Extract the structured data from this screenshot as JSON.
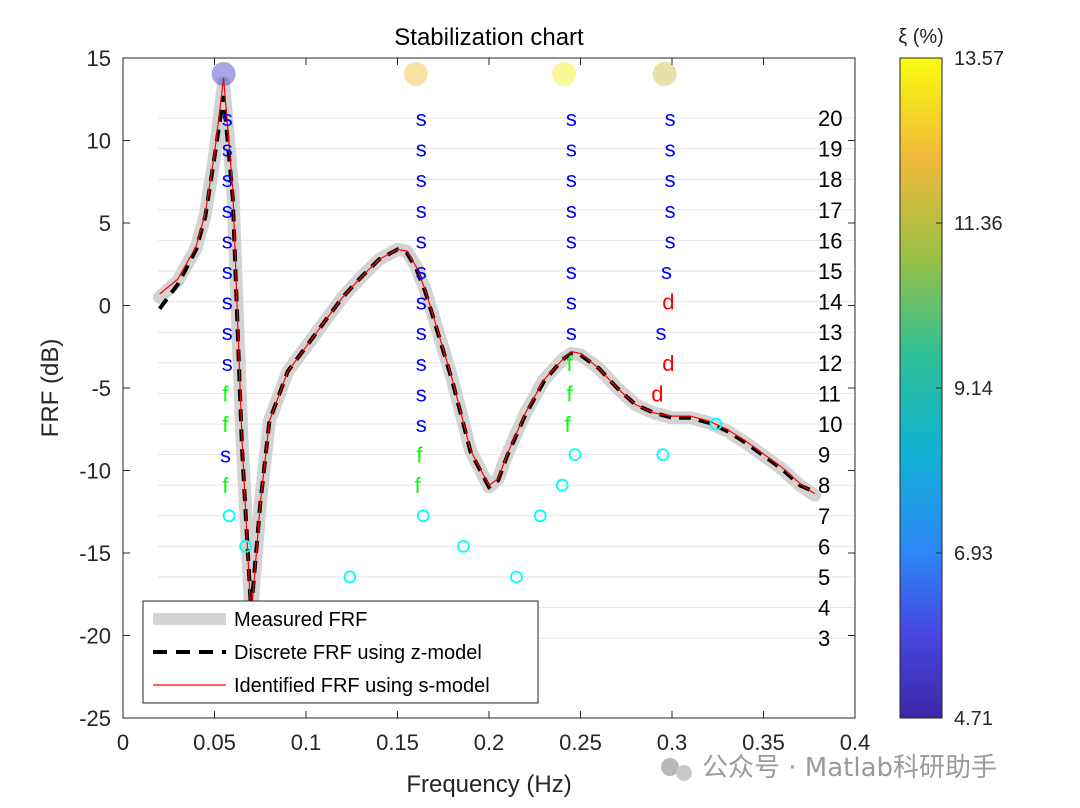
{
  "chart_data": {
    "type": "line",
    "title": "Stabilization chart",
    "xlabel": "Frequency (Hz)",
    "ylabel": "FRF (dB)",
    "xlim": [
      0,
      0.4
    ],
    "ylim": [
      -25,
      15
    ],
    "xticks": [
      0,
      0.05,
      0.1,
      0.15,
      0.2,
      0.25,
      0.3,
      0.35,
      0.4
    ],
    "xtick_labels": [
      "0",
      "0.05",
      "0.1",
      "0.15",
      "0.2",
      "0.25",
      "0.3",
      "0.35",
      "0.4"
    ],
    "yticks": [
      15,
      10,
      5,
      0,
      -5,
      -10,
      -15,
      -20,
      -25
    ],
    "ytick_labels": [
      "15",
      "10",
      "5",
      "0",
      "-5",
      "-10",
      "-15",
      "-20",
      "-25"
    ],
    "model_orders": [
      3,
      4,
      5,
      6,
      7,
      8,
      9,
      10,
      11,
      12,
      13,
      14,
      15,
      16,
      17,
      18,
      19,
      20
    ],
    "series": [
      {
        "name": "Measured FRF",
        "style": "thick-gray",
        "x": [
          0.02,
          0.03,
          0.04,
          0.045,
          0.05,
          0.055,
          0.06,
          0.065,
          0.07,
          0.075,
          0.08,
          0.09,
          0.1,
          0.11,
          0.12,
          0.13,
          0.14,
          0.15,
          0.155,
          0.16,
          0.165,
          0.17,
          0.18,
          0.19,
          0.2,
          0.205,
          0.21,
          0.22,
          0.23,
          0.24,
          0.245,
          0.25,
          0.26,
          0.27,
          0.28,
          0.29,
          0.3,
          0.31,
          0.32,
          0.33,
          0.34,
          0.35,
          0.36,
          0.37,
          0.378
        ],
        "y": [
          0.5,
          1.5,
          3.5,
          5.5,
          9,
          13.5,
          7,
          -8,
          -19,
          -12,
          -7,
          -4,
          -2.5,
          -1,
          0.5,
          1.7,
          2.8,
          3.4,
          3.3,
          2.4,
          1,
          -0.8,
          -4.5,
          -8.8,
          -11,
          -10.5,
          -9,
          -6.5,
          -4.5,
          -3.3,
          -2.9,
          -3,
          -3.8,
          -5,
          -6,
          -6.5,
          -6.8,
          -6.8,
          -7.1,
          -7.6,
          -8.3,
          -9.1,
          -9.9,
          -10.9,
          -11.5
        ]
      },
      {
        "name": "Discrete FRF using z-model",
        "style": "black-dashed",
        "x": [
          0.02,
          0.03,
          0.04,
          0.045,
          0.05,
          0.055,
          0.06,
          0.065,
          0.07,
          0.075,
          0.08,
          0.09,
          0.1,
          0.11,
          0.12,
          0.13,
          0.14,
          0.15,
          0.155,
          0.16,
          0.165,
          0.17,
          0.18,
          0.19,
          0.2,
          0.205,
          0.21,
          0.22,
          0.23,
          0.24,
          0.245,
          0.25,
          0.26,
          0.27,
          0.28,
          0.29,
          0.3,
          0.31,
          0.32,
          0.33,
          0.34,
          0.35,
          0.36,
          0.37,
          0.378
        ],
        "y": [
          -0.2,
          1.3,
          3.4,
          5.4,
          9,
          12.7,
          6.5,
          -8.5,
          -18.5,
          -12,
          -7,
          -4,
          -2.5,
          -1,
          0.5,
          1.7,
          2.8,
          3.4,
          3.2,
          2.3,
          0.9,
          -0.9,
          -4.6,
          -8.9,
          -11,
          -10.6,
          -9.1,
          -6.6,
          -4.6,
          -3.3,
          -2.9,
          -3,
          -3.8,
          -5,
          -6,
          -6.5,
          -6.8,
          -6.8,
          -7.1,
          -7.6,
          -8.3,
          -9.1,
          -9.9,
          -10.9,
          -11.3
        ]
      },
      {
        "name": "Identified FRF using s-model",
        "style": "red-thin",
        "x": [
          0.02,
          0.03,
          0.04,
          0.045,
          0.05,
          0.055,
          0.06,
          0.065,
          0.07,
          0.075,
          0.08,
          0.09,
          0.1,
          0.11,
          0.12,
          0.13,
          0.14,
          0.15,
          0.155,
          0.16,
          0.165,
          0.17,
          0.18,
          0.19,
          0.2,
          0.205,
          0.21,
          0.22,
          0.23,
          0.24,
          0.245,
          0.25,
          0.26,
          0.27,
          0.28,
          0.29,
          0.3,
          0.31,
          0.32,
          0.33,
          0.34,
          0.35,
          0.36,
          0.37,
          0.378
        ],
        "y": [
          0.7,
          1.6,
          3.6,
          5.6,
          9.2,
          13.8,
          7,
          -8,
          -19,
          -12,
          -7,
          -4,
          -2.5,
          -1,
          0.5,
          1.7,
          2.8,
          3.4,
          3.3,
          2.4,
          1,
          -0.8,
          -4.5,
          -8.8,
          -10.9,
          -10.5,
          -9,
          -6.5,
          -4.5,
          -3.3,
          -2.8,
          -2.9,
          -3.8,
          -5,
          -6,
          -6.5,
          -6.7,
          -6.7,
          -7,
          -7.5,
          -8.2,
          -9,
          -9.8,
          -10.8,
          -11.4
        ]
      }
    ],
    "stability_marks": [
      {
        "f": 0.057,
        "order": 20,
        "label": "s"
      },
      {
        "f": 0.163,
        "order": 20,
        "label": "s"
      },
      {
        "f": 0.245,
        "order": 20,
        "label": "s"
      },
      {
        "f": 0.299,
        "order": 20,
        "label": "s"
      },
      {
        "f": 0.057,
        "order": 19,
        "label": "s"
      },
      {
        "f": 0.163,
        "order": 19,
        "label": "s"
      },
      {
        "f": 0.245,
        "order": 19,
        "label": "s"
      },
      {
        "f": 0.299,
        "order": 19,
        "label": "s"
      },
      {
        "f": 0.057,
        "order": 18,
        "label": "s"
      },
      {
        "f": 0.163,
        "order": 18,
        "label": "s"
      },
      {
        "f": 0.245,
        "order": 18,
        "label": "s"
      },
      {
        "f": 0.299,
        "order": 18,
        "label": "s"
      },
      {
        "f": 0.057,
        "order": 17,
        "label": "s"
      },
      {
        "f": 0.163,
        "order": 17,
        "label": "s"
      },
      {
        "f": 0.245,
        "order": 17,
        "label": "s"
      },
      {
        "f": 0.299,
        "order": 17,
        "label": "s"
      },
      {
        "f": 0.057,
        "order": 16,
        "label": "s"
      },
      {
        "f": 0.163,
        "order": 16,
        "label": "s"
      },
      {
        "f": 0.245,
        "order": 16,
        "label": "s"
      },
      {
        "f": 0.299,
        "order": 16,
        "label": "s"
      },
      {
        "f": 0.057,
        "order": 15,
        "label": "s"
      },
      {
        "f": 0.163,
        "order": 15,
        "label": "s"
      },
      {
        "f": 0.245,
        "order": 15,
        "label": "s"
      },
      {
        "f": 0.297,
        "order": 15,
        "label": "s"
      },
      {
        "f": 0.057,
        "order": 14,
        "label": "s"
      },
      {
        "f": 0.163,
        "order": 14,
        "label": "s"
      },
      {
        "f": 0.245,
        "order": 14,
        "label": "s"
      },
      {
        "f": 0.298,
        "order": 14,
        "label": "d"
      },
      {
        "f": 0.057,
        "order": 13,
        "label": "s"
      },
      {
        "f": 0.163,
        "order": 13,
        "label": "s"
      },
      {
        "f": 0.245,
        "order": 13,
        "label": "s"
      },
      {
        "f": 0.294,
        "order": 13,
        "label": "s"
      },
      {
        "f": 0.057,
        "order": 12,
        "label": "s"
      },
      {
        "f": 0.163,
        "order": 12,
        "label": "s"
      },
      {
        "f": 0.244,
        "order": 12,
        "label": "f"
      },
      {
        "f": 0.298,
        "order": 12,
        "label": "d"
      },
      {
        "f": 0.056,
        "order": 11,
        "label": "f"
      },
      {
        "f": 0.163,
        "order": 11,
        "label": "s"
      },
      {
        "f": 0.244,
        "order": 11,
        "label": "f"
      },
      {
        "f": 0.292,
        "order": 11,
        "label": "d"
      },
      {
        "f": 0.056,
        "order": 10,
        "label": "f"
      },
      {
        "f": 0.163,
        "order": 10,
        "label": "s"
      },
      {
        "f": 0.243,
        "order": 10,
        "label": "f"
      },
      {
        "f": 0.056,
        "order": 9,
        "label": "s"
      },
      {
        "f": 0.162,
        "order": 9,
        "label": "f"
      },
      {
        "f": 0.056,
        "order": 8,
        "label": "f"
      },
      {
        "f": 0.161,
        "order": 8,
        "label": "f"
      }
    ],
    "unstable_poles": [
      {
        "f": 0.247,
        "order": 9
      },
      {
        "f": 0.295,
        "order": 9
      },
      {
        "f": 0.324,
        "order": 10
      },
      {
        "f": 0.24,
        "order": 8
      },
      {
        "f": 0.058,
        "order": 7
      },
      {
        "f": 0.164,
        "order": 7
      },
      {
        "f": 0.228,
        "order": 7
      },
      {
        "f": 0.067,
        "order": 6
      },
      {
        "f": 0.186,
        "order": 6
      },
      {
        "f": 0.124,
        "order": 5
      },
      {
        "f": 0.215,
        "order": 5
      }
    ],
    "identified_modes": [
      {
        "f": 0.055,
        "xi": 5.3
      },
      {
        "f": 0.16,
        "xi": 12.4
      },
      {
        "f": 0.241,
        "xi": 13.3
      },
      {
        "f": 0.296,
        "xi": 11.6
      }
    ],
    "colorbar": {
      "label": "ξ (%)",
      "min": 4.71,
      "max": 13.57,
      "ticks": [
        "13.57",
        "11.36",
        "9.14",
        "6.93",
        "4.71"
      ]
    },
    "legend": {
      "position": "bottom-left",
      "entries": [
        "Measured FRF",
        "Discrete FRF using z-model",
        "Identified FRF using s-model"
      ]
    },
    "colors": {
      "measured": "#d3d3d3",
      "z_model": "#000000",
      "s_model": "#ff0000",
      "s_mark": "#0000ff",
      "f_mark": "#00ff00",
      "d_mark": "#ff0000",
      "o_mark": "#00ffff"
    },
    "grid": true
  },
  "watermark": {
    "text": "公众号 · Matlab科研助手"
  }
}
